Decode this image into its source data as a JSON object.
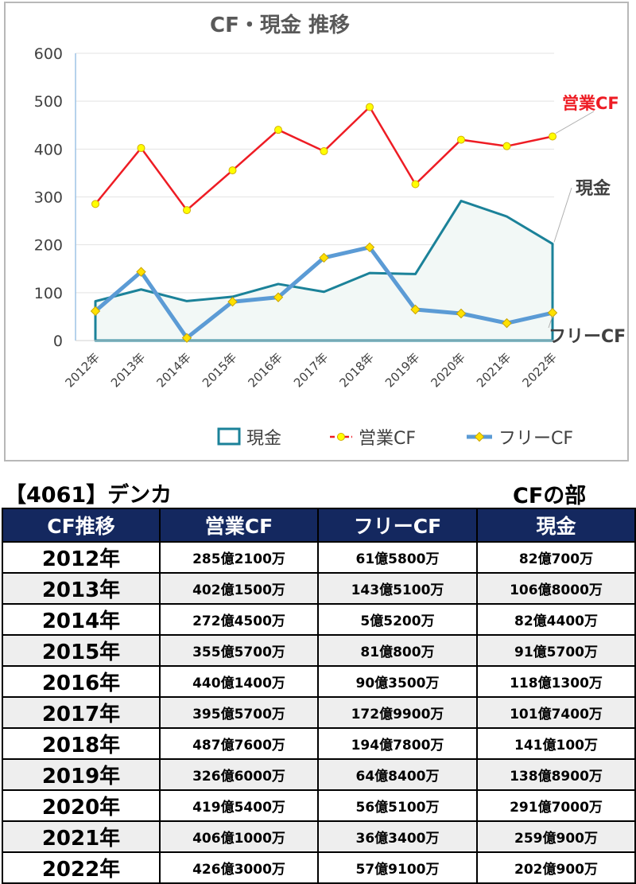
{
  "chart_data": {
    "type": "line",
    "title": "CF・現金 推移",
    "categories": [
      "2012年",
      "2013年",
      "2014年",
      "2015年",
      "2016年",
      "2017年",
      "2018年",
      "2019年",
      "2020年",
      "2021年",
      "2022年"
    ],
    "ylim": [
      0,
      600
    ],
    "yticks": [
      0,
      100,
      200,
      300,
      400,
      500,
      600
    ],
    "grid": true,
    "legend_position": "bottom-right",
    "series": [
      {
        "name": "現金",
        "kind": "area",
        "color": "#1b8299",
        "fill": "#f2f8f6",
        "values": [
          82.07,
          106.8,
          82.44,
          91.57,
          118.13,
          101.74,
          141.01,
          138.89,
          291.7,
          259.09,
          202.09
        ]
      },
      {
        "name": "営業CF",
        "kind": "line",
        "color": "#ee1c24",
        "marker": "#ffff00",
        "values": [
          285.21,
          402.15,
          272.45,
          355.57,
          440.14,
          395.57,
          487.76,
          326.6,
          419.54,
          406.1,
          426.3
        ]
      },
      {
        "name": "フリーCF",
        "kind": "line",
        "color": "#5b9bd5",
        "marker": "#ffe100",
        "values": [
          61.58,
          143.51,
          5.52,
          81.08,
          90.35,
          172.99,
          194.78,
          64.84,
          56.51,
          36.34,
          57.91
        ]
      }
    ],
    "annotations": [
      "営業CF",
      "現金",
      "フリーCF"
    ]
  },
  "company": "【4061】デンカ",
  "section": "CFの部",
  "table": {
    "headers": [
      "CF推移",
      "営業CF",
      "フリーCF",
      "現金"
    ],
    "rows": [
      [
        "2012年",
        "285億2100万",
        "61億5800万",
        "82億700万"
      ],
      [
        "2013年",
        "402億1500万",
        "143億5100万",
        "106億8000万"
      ],
      [
        "2014年",
        "272億4500万",
        "5億5200万",
        "82億4400万"
      ],
      [
        "2015年",
        "355億5700万",
        "81億800万",
        "91億5700万"
      ],
      [
        "2016年",
        "440億1400万",
        "90億3500万",
        "118億1300万"
      ],
      [
        "2017年",
        "395億5700万",
        "172億9900万",
        "101億7400万"
      ],
      [
        "2018年",
        "487億7600万",
        "194億7800万",
        "141億100万"
      ],
      [
        "2019年",
        "326億6000万",
        "64億8400万",
        "138億8900万"
      ],
      [
        "2020年",
        "419億5400万",
        "56億5100万",
        "291億7000万"
      ],
      [
        "2021年",
        "406億1000万",
        "36億3400万",
        "259億900万"
      ],
      [
        "2022年",
        "426億3000万",
        "57億9100万",
        "202億900万"
      ]
    ]
  }
}
